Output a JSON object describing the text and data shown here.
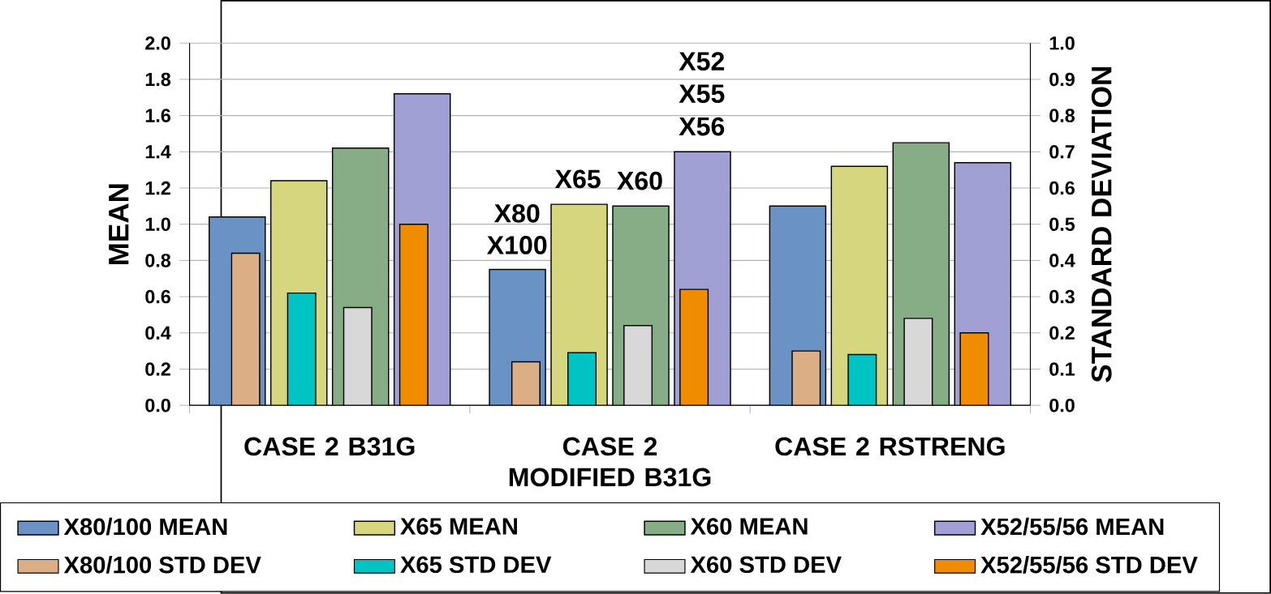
{
  "chart_data": {
    "type": "bar",
    "categories": [
      "CASE 2 B31G",
      "CASE 2 MODIFIED B31G",
      "CASE 2 RSTRENG"
    ],
    "ylabel": "MEAN",
    "y2label": "STANDARD DEVIATION",
    "ylim": [
      0,
      2.0
    ],
    "yticks": [
      {
        "value": 0,
        "label": "0.0"
      },
      {
        "value": 0.2,
        "label": "0.2"
      },
      {
        "value": 0.4,
        "label": "0.4"
      },
      {
        "value": 0.6,
        "label": "0.6"
      },
      {
        "value": 0.8,
        "label": "0.8"
      },
      {
        "value": 1.0,
        "label": "1.0"
      },
      {
        "value": 1.2,
        "label": "1.2"
      },
      {
        "value": 1.4,
        "label": "1.4"
      },
      {
        "value": 1.6,
        "label": "1.6"
      },
      {
        "value": 1.8,
        "label": "1.8"
      },
      {
        "value": 2.0,
        "label": "2.0"
      }
    ],
    "y2lim": [
      0,
      1.0
    ],
    "y2ticks": [
      {
        "value": 0,
        "label": "0.0"
      },
      {
        "value": 0.1,
        "label": "0.1"
      },
      {
        "value": 0.2,
        "label": "0.2"
      },
      {
        "value": 0.3,
        "label": "0.3"
      },
      {
        "value": 0.4,
        "label": "0.4"
      },
      {
        "value": 0.5,
        "label": "0.5"
      },
      {
        "value": 0.6,
        "label": "0.6"
      },
      {
        "value": 0.7,
        "label": "0.7"
      },
      {
        "value": 0.8,
        "label": "0.8"
      },
      {
        "value": 0.9,
        "label": "0.9"
      },
      {
        "value": 1.0,
        "label": "1.0"
      }
    ],
    "grid": "y",
    "legend": "bottom",
    "series": [
      {
        "name": "X80/100 MEAN",
        "color": "#6a92c4",
        "values": [
          1.04,
          0.75,
          1.1
        ]
      },
      {
        "name": "X65 MEAN",
        "color": "#d6d67e",
        "values": [
          1.24,
          1.11,
          1.32
        ]
      },
      {
        "name": "X60 MEAN",
        "color": "#86ad86",
        "values": [
          1.42,
          1.1,
          1.45
        ]
      },
      {
        "name": "X52/55/56 MEAN",
        "color": "#a0a0d4",
        "values": [
          1.72,
          1.4,
          1.34
        ]
      },
      {
        "name": "X80/100 STD DEV",
        "color": "#dcae86",
        "axis": "y2",
        "values": [
          0.42,
          0.12,
          0.15
        ]
      },
      {
        "name": "X65 STD DEV",
        "color": "#00c4c4",
        "axis": "y2",
        "values": [
          0.31,
          0.145,
          0.14
        ]
      },
      {
        "name": "X60 STD DEV",
        "color": "#d8d8d8",
        "axis": "y2",
        "values": [
          0.27,
          0.22,
          0.24
        ]
      },
      {
        "name": "X52/55/56 STD DEV",
        "color": "#f08c00",
        "axis": "y2",
        "values": [
          0.5,
          0.32,
          0.2
        ]
      }
    ],
    "annotations": [
      "X80",
      "X100",
      "X65",
      "X60",
      "X52",
      "X55",
      "X56"
    ]
  }
}
